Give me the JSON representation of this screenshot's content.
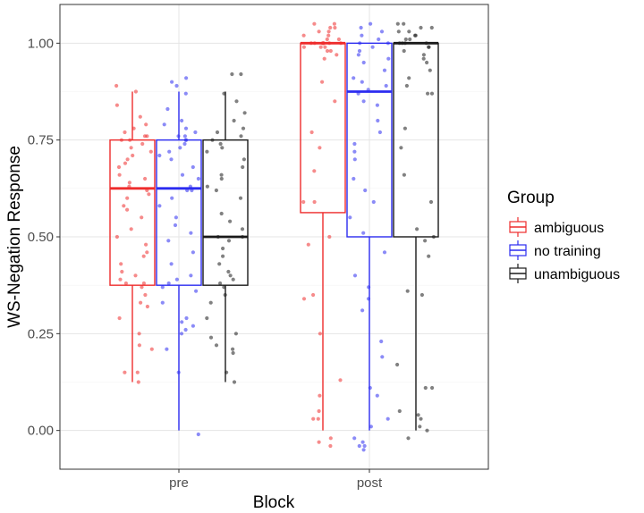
{
  "chart_data": {
    "type": "boxplot",
    "xlabel": "Block",
    "ylabel": "WS-Negation Response",
    "ylim": [
      -0.1,
      1.1
    ],
    "yticks": [
      "0.00",
      "0.25",
      "0.50",
      "0.75",
      "1.00"
    ],
    "categories": [
      "pre",
      "post"
    ],
    "legend": {
      "title": "Group",
      "placement": "right"
    },
    "series": [
      {
        "name": "ambiguous",
        "color": "#ee2c2c",
        "boxes": [
          {
            "block": "pre",
            "min": 0.125,
            "q1": 0.375,
            "median": 0.625,
            "q3": 0.75,
            "max": 0.875
          },
          {
            "block": "post",
            "min": 0.0,
            "q1": 0.5625,
            "median": 1.0,
            "q3": 1.0,
            "max": 1.0
          }
        ]
      },
      {
        "name": "no training",
        "color": "#2b2bf0",
        "boxes": [
          {
            "block": "pre",
            "min": 0.0,
            "q1": 0.375,
            "median": 0.625,
            "q3": 0.75,
            "max": 0.875
          },
          {
            "block": "post",
            "min": 0.0,
            "q1": 0.5,
            "median": 0.875,
            "q3": 1.0,
            "max": 1.0
          }
        ]
      },
      {
        "name": "unambiguous",
        "color": "#1a1a1a",
        "boxes": [
          {
            "block": "pre",
            "min": 0.125,
            "q1": 0.375,
            "median": 0.5,
            "q3": 0.75,
            "max": 0.875
          },
          {
            "block": "post",
            "min": 0.0,
            "q1": 0.5,
            "median": 1.0,
            "q3": 1.0,
            "max": 1.0
          }
        ]
      }
    ],
    "points": {
      "ambiguous": {
        "pre": [
          0.125,
          0.15,
          0.15,
          0.21,
          0.22,
          0.25,
          0.29,
          0.32,
          0.33,
          0.35,
          0.37,
          0.38,
          0.38,
          0.39,
          0.4,
          0.41,
          0.43,
          0.45,
          0.46,
          0.48,
          0.5,
          0.52,
          0.55,
          0.57,
          0.58,
          0.6,
          0.61,
          0.62,
          0.63,
          0.64,
          0.65,
          0.66,
          0.68,
          0.69,
          0.7,
          0.71,
          0.72,
          0.73,
          0.74,
          0.75,
          0.75,
          0.76,
          0.76,
          0.77,
          0.78,
          0.79,
          0.81,
          0.84,
          0.875,
          0.89
        ],
        "post": [
          -0.04,
          -0.03,
          -0.02,
          0.03,
          0.03,
          0.05,
          0.09,
          0.13,
          0.25,
          0.34,
          0.35,
          0.48,
          0.5,
          0.59,
          0.59,
          0.67,
          0.73,
          0.77,
          0.85,
          0.9,
          0.96,
          0.97,
          0.98,
          0.98,
          0.99,
          0.99,
          0.99,
          1.0,
          1.0,
          1.0,
          1.0,
          1.0,
          1.0,
          1.0,
          1.01,
          1.01,
          1.02,
          1.02,
          1.03,
          1.03,
          1.04,
          1.04,
          1.05,
          1.05
        ]
      },
      "no training": {
        "pre": [
          -0.01,
          0.15,
          0.21,
          0.25,
          0.26,
          0.27,
          0.28,
          0.29,
          0.33,
          0.36,
          0.37,
          0.38,
          0.39,
          0.4,
          0.43,
          0.46,
          0.49,
          0.51,
          0.53,
          0.55,
          0.58,
          0.6,
          0.62,
          0.62,
          0.63,
          0.65,
          0.66,
          0.68,
          0.7,
          0.71,
          0.72,
          0.73,
          0.74,
          0.75,
          0.75,
          0.76,
          0.76,
          0.77,
          0.78,
          0.79,
          0.8,
          0.83,
          0.87,
          0.89,
          0.9,
          0.91
        ],
        "post": [
          -0.05,
          -0.04,
          -0.04,
          -0.03,
          -0.02,
          0.01,
          0.03,
          0.09,
          0.11,
          0.19,
          0.23,
          0.31,
          0.34,
          0.37,
          0.4,
          0.46,
          0.51,
          0.55,
          0.59,
          0.62,
          0.65,
          0.7,
          0.72,
          0.74,
          0.77,
          0.8,
          0.84,
          0.85,
          0.87,
          0.88,
          0.89,
          0.9,
          0.91,
          0.93,
          0.95,
          0.96,
          0.97,
          0.98,
          0.99,
          1.0,
          1.0,
          1.01,
          1.02,
          1.03,
          1.04,
          1.05
        ]
      },
      "unambiguous": {
        "pre": [
          0.125,
          0.15,
          0.2,
          0.21,
          0.22,
          0.24,
          0.25,
          0.29,
          0.33,
          0.35,
          0.37,
          0.38,
          0.39,
          0.4,
          0.41,
          0.43,
          0.45,
          0.47,
          0.49,
          0.5,
          0.5,
          0.52,
          0.54,
          0.56,
          0.6,
          0.62,
          0.63,
          0.65,
          0.66,
          0.68,
          0.7,
          0.72,
          0.73,
          0.74,
          0.75,
          0.76,
          0.77,
          0.78,
          0.8,
          0.82,
          0.85,
          0.87,
          0.92,
          0.92
        ],
        "post": [
          -0.02,
          0.0,
          0.01,
          0.03,
          0.04,
          0.05,
          0.11,
          0.11,
          0.17,
          0.35,
          0.36,
          0.45,
          0.49,
          0.5,
          0.52,
          0.59,
          0.66,
          0.73,
          0.78,
          0.87,
          0.87,
          0.89,
          0.91,
          0.93,
          0.95,
          0.96,
          0.97,
          0.98,
          0.99,
          0.99,
          1.0,
          1.0,
          1.0,
          1.0,
          1.01,
          1.01,
          1.02,
          1.02,
          1.03,
          1.03,
          1.04,
          1.04,
          1.05,
          1.05
        ]
      }
    }
  }
}
